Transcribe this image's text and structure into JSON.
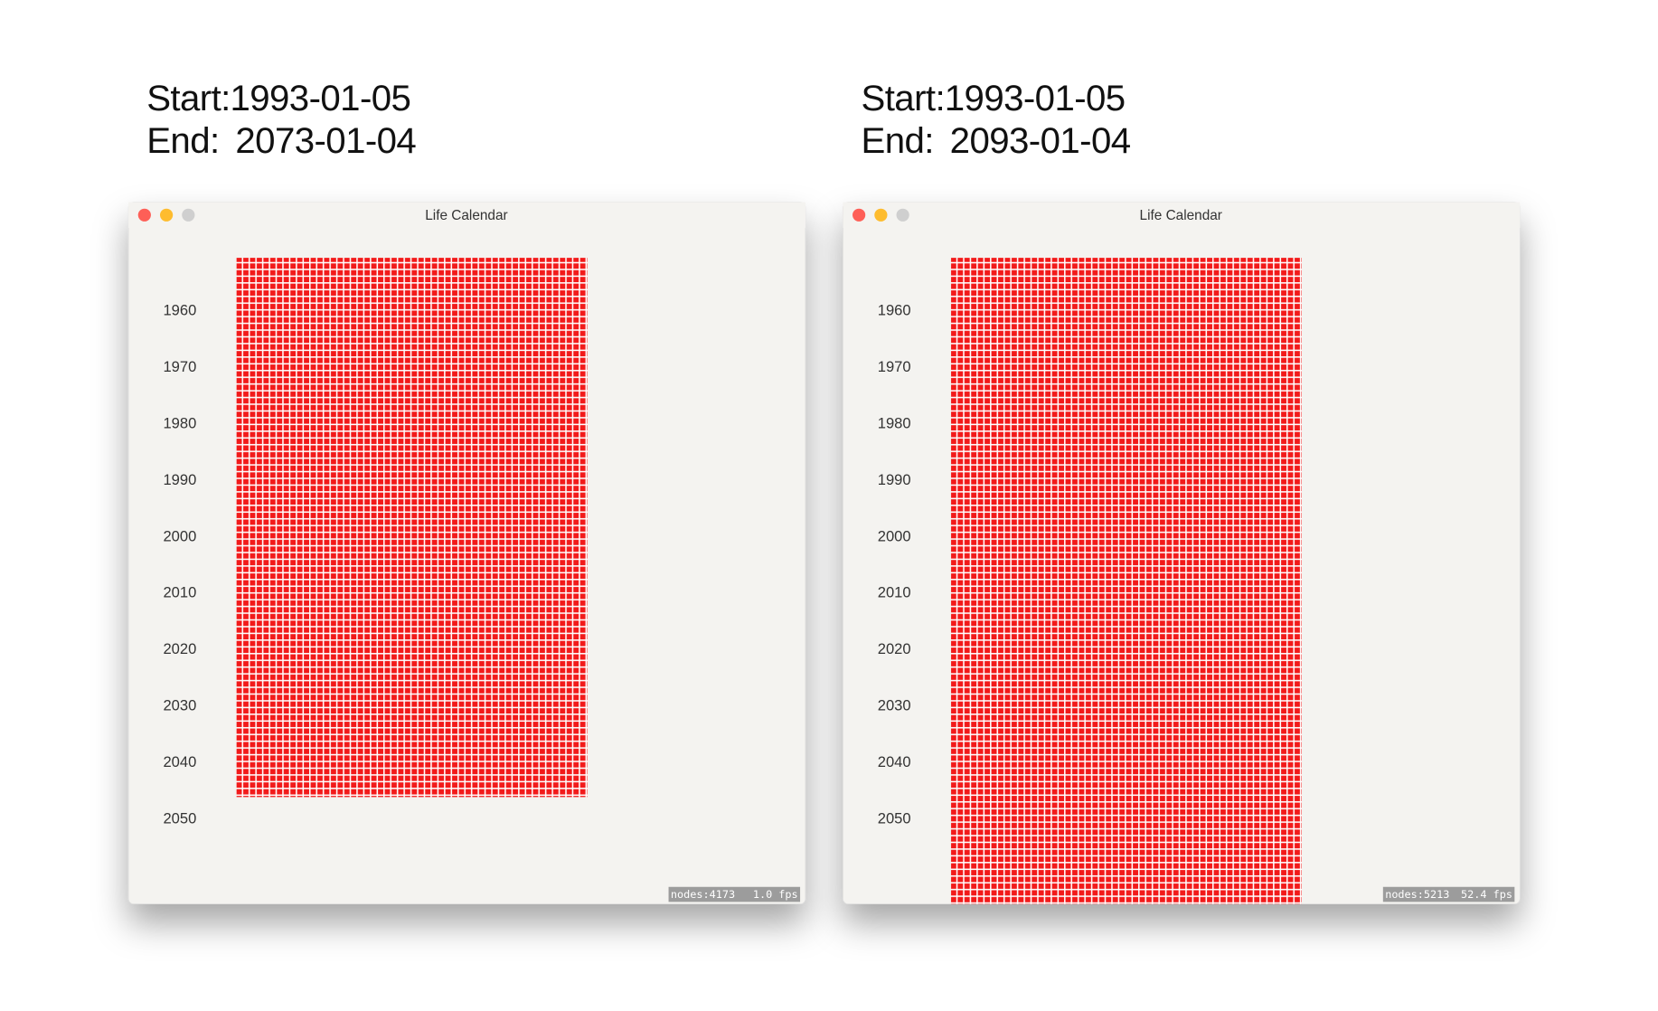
{
  "panels": [
    {
      "start_label": "Start:",
      "start": "1993-01-05",
      "end_label": "End:",
      "end": "2073-01-04",
      "window_title": "Life Calendar",
      "year_labels": [
        "1960",
        "1970",
        "1980",
        "1990",
        "2000",
        "2010",
        "2020",
        "2030",
        "2040",
        "2050"
      ],
      "nodes": "nodes:4173",
      "fps": "1.0 fps"
    },
    {
      "start_label": "Start:",
      "start": "1993-01-05",
      "end_label": "End:",
      "end": "2093-01-04",
      "window_title": "Life Calendar",
      "year_labels": [
        "1960",
        "1970",
        "1980",
        "1990",
        "2000",
        "2010",
        "2020",
        "2030",
        "2040",
        "2050"
      ],
      "nodes": "nodes:5213",
      "fps": "52.4 fps"
    }
  ]
}
